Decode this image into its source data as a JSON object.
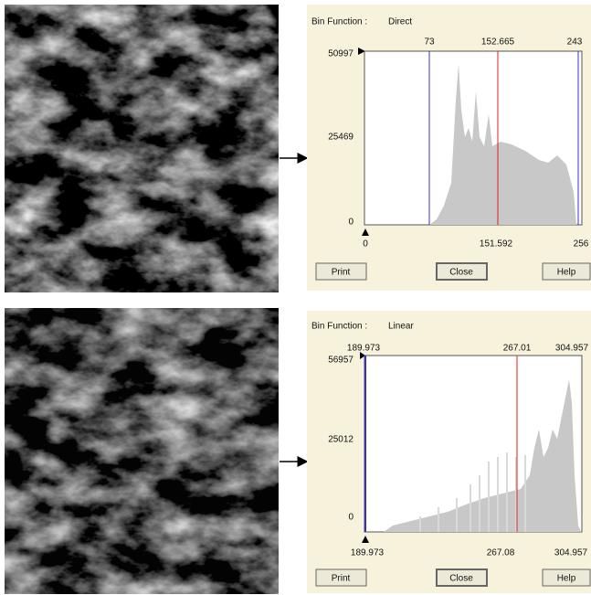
{
  "panels": [
    {
      "bin_function_label": "Bin Function :",
      "bin_function": "Direct",
      "top_markers": [
        "73",
        "152.665",
        "243"
      ],
      "y_labels": [
        "50997",
        "25469",
        "0"
      ],
      "x_labels": [
        "0",
        "151.592",
        "256"
      ],
      "buttons": [
        "Print",
        "Close",
        "Help"
      ]
    },
    {
      "bin_function_label": "Bin Function :",
      "bin_function": "Linear",
      "top_markers": [
        "189.973",
        "267.01",
        "304.957"
      ],
      "y_labels": [
        "56957",
        "25012",
        "0"
      ],
      "x_labels": [
        "189.973",
        "267.08",
        "304.957"
      ],
      "buttons": [
        "Print",
        "Close",
        "Help"
      ]
    }
  ]
}
